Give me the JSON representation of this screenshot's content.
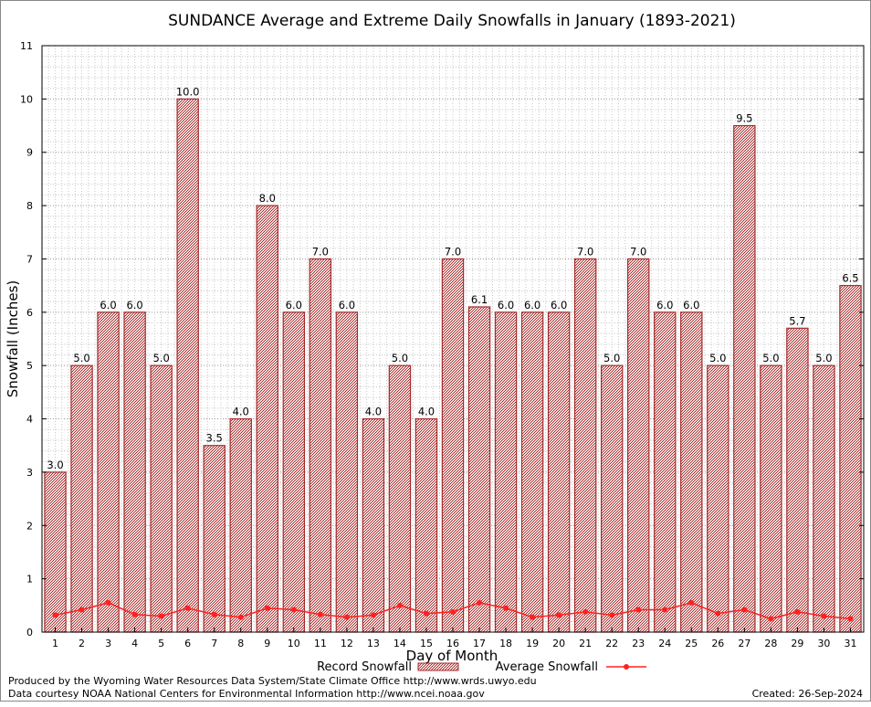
{
  "chart_data": {
    "type": "bar",
    "title": "SUNDANCE Average and Extreme Daily Snowfalls in January (1893-2021)",
    "xlabel": "Day of Month",
    "ylabel": "Snowfall (Inches)",
    "ylim": [
      0,
      11
    ],
    "yticks": [
      "0",
      "1",
      "2",
      "3",
      "4",
      "5",
      "6",
      "7",
      "8",
      "9",
      "10",
      "11"
    ],
    "grid": true,
    "legend_position": "bottom",
    "categories": [
      "1",
      "2",
      "3",
      "4",
      "5",
      "6",
      "7",
      "8",
      "9",
      "10",
      "11",
      "12",
      "13",
      "14",
      "15",
      "16",
      "17",
      "18",
      "19",
      "20",
      "21",
      "22",
      "23",
      "24",
      "25",
      "26",
      "27",
      "28",
      "29",
      "30",
      "31"
    ],
    "series": [
      {
        "name": "Record Snowfall",
        "kind": "bar",
        "color": "#a52a2a",
        "values": [
          3.0,
          5.0,
          6.0,
          6.0,
          5.0,
          10.0,
          3.5,
          4.0,
          8.0,
          6.0,
          7.0,
          6.0,
          4.0,
          5.0,
          4.0,
          7.0,
          6.1,
          6.0,
          6.0,
          6.0,
          7.0,
          5.0,
          7.0,
          6.0,
          6.0,
          5.0,
          9.5,
          5.0,
          5.7,
          5.0,
          6.5
        ],
        "labels": [
          "3.0",
          "5.0",
          "6.0",
          "6.0",
          "5.0",
          "10.0",
          "3.5",
          "4.0",
          "8.0",
          "6.0",
          "7.0",
          "6.0",
          "4.0",
          "5.0",
          "4.0",
          "7.0",
          "6.1",
          "6.0",
          "6.0",
          "6.0",
          "7.0",
          "5.0",
          "7.0",
          "6.0",
          "6.0",
          "5.0",
          "9.5",
          "5.0",
          "5.7",
          "5.0",
          "6.5"
        ]
      },
      {
        "name": "Average Snowfall",
        "kind": "line",
        "color": "#ff2020",
        "values": [
          0.32,
          0.42,
          0.55,
          0.33,
          0.3,
          0.45,
          0.33,
          0.28,
          0.45,
          0.42,
          0.33,
          0.28,
          0.32,
          0.5,
          0.35,
          0.38,
          0.55,
          0.45,
          0.28,
          0.32,
          0.38,
          0.32,
          0.42,
          0.42,
          0.55,
          0.35,
          0.42,
          0.25,
          0.38,
          0.3,
          0.25
        ]
      }
    ]
  },
  "credits": {
    "produced_by": "Produced by the Wyoming Water Resources Data System/State Climate Office http://www.wrds.uwyo.edu",
    "data_courtesy": "Data courtesy NOAA National Centers for Environmental Information http://www.ncei.noaa.gov",
    "created": "Created:  26-Sep-2024"
  }
}
